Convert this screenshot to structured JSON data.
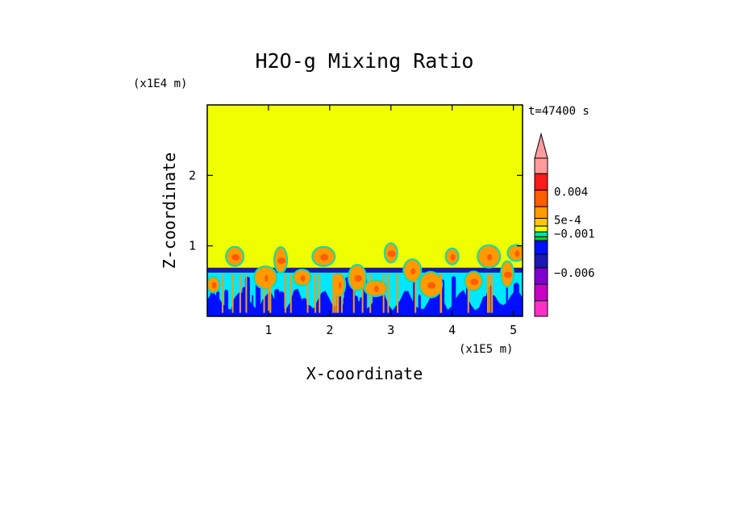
{
  "chart_data": {
    "type": "heatmap",
    "title": "H2O-g Mixing Ratio",
    "xlabel": "X-coordinate",
    "ylabel": "Z-coordinate",
    "x_scale_label": "(x1E5 m)",
    "y_scale_label": "(x1E4 m)",
    "time_label": "t=47400 s",
    "xlim": [
      0,
      5.15
    ],
    "ylim": [
      0,
      3.0
    ],
    "x_ticks": [
      1,
      2,
      3,
      4,
      5
    ],
    "y_ticks": [
      1,
      2
    ],
    "grid": false,
    "colorbar": {
      "extend": "max",
      "extend_color": "#ff9b9b",
      "colors": [
        "#ff9b9b",
        "#ff1a1a",
        "#ff5b00",
        "#ff9a00",
        "#ffc800",
        "#f0ff00",
        "#00e0b4",
        "#19cc19",
        "#0010ff",
        "#1a18b0",
        "#8000d0",
        "#c800c8",
        "#ff30c8"
      ],
      "tick_labels": [
        "0.004",
        "5e-4",
        "−0.001",
        "−0.006"
      ]
    },
    "field_colors": {
      "upper": "#f0ff00",
      "cap": "#1a18b0",
      "mid": "#00e8ff",
      "deep": "#0010ff",
      "plume_outer": "#ff9a00",
      "plume_inner": "#ff5b00",
      "edge": "#00e0b4"
    }
  }
}
